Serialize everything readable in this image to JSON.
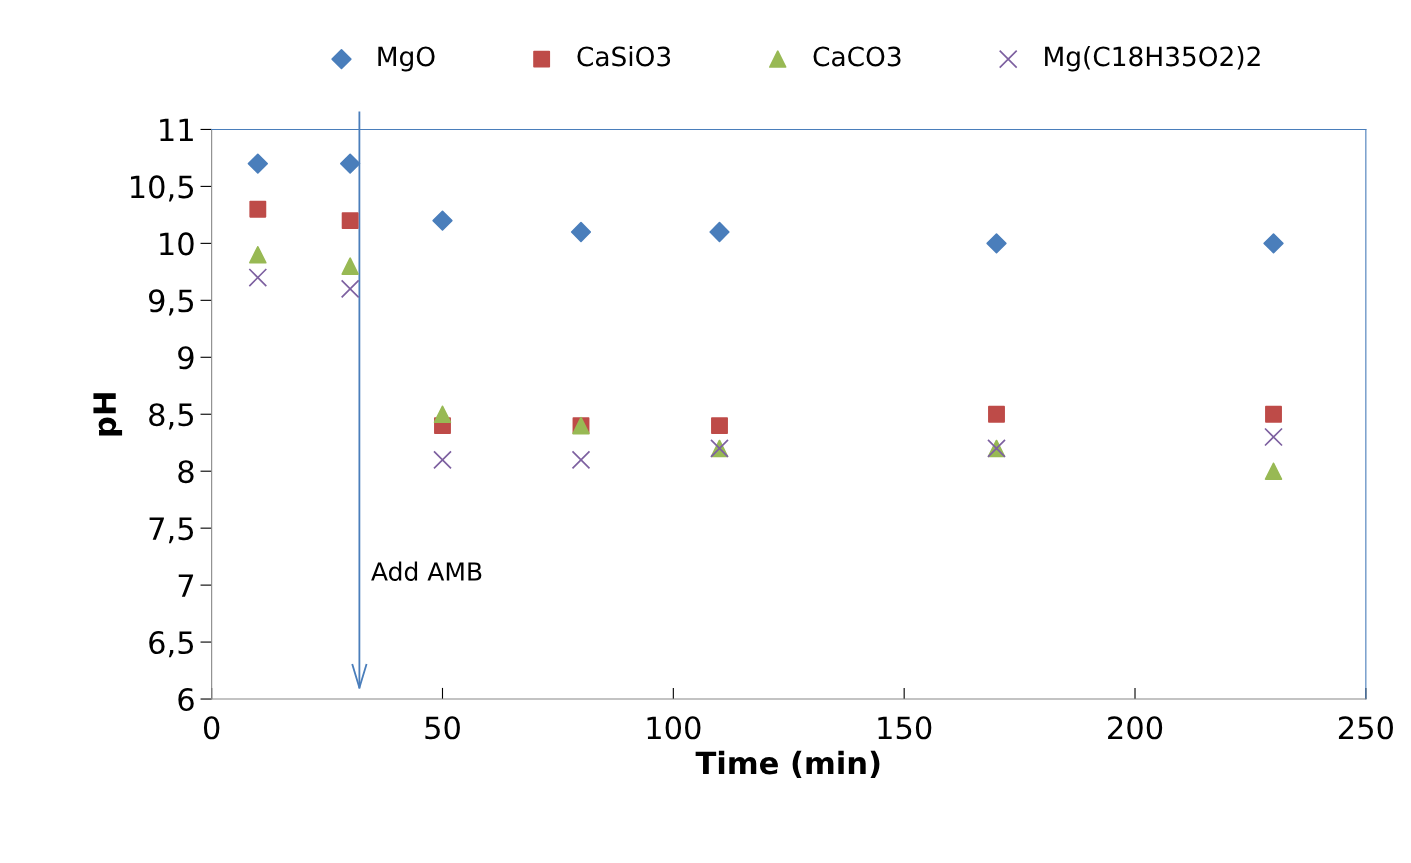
{
  "chart_data": {
    "type": "scatter",
    "xlabel": "Time (min)",
    "ylabel": "pH",
    "x": [
      10,
      30,
      50,
      80,
      110,
      170,
      230
    ],
    "series": [
      {
        "name": "MgO",
        "color": "#4a7ebb",
        "marker": "diamond",
        "values": [
          10.7,
          10.7,
          10.2,
          10.1,
          10.1,
          10.0,
          10.0
        ]
      },
      {
        "name": "CaSiO3",
        "color": "#be4b48",
        "marker": "square",
        "values": [
          10.3,
          10.2,
          8.4,
          8.4,
          8.4,
          8.5,
          8.5
        ]
      },
      {
        "name": "CaCO3",
        "color": "#98b954",
        "marker": "triangle",
        "values": [
          9.9,
          9.8,
          8.5,
          8.4,
          8.2,
          8.2,
          8.0
        ]
      },
      {
        "name": "Mg(C18H35O2)2",
        "color": "#7d60a0",
        "marker": "cross",
        "values": [
          9.7,
          9.6,
          8.1,
          8.1,
          8.2,
          8.2,
          8.3
        ]
      }
    ],
    "xlim": [
      0,
      250
    ],
    "xticks": [
      0,
      50,
      100,
      150,
      200,
      250
    ],
    "ylim": [
      6,
      11
    ],
    "yticks": [
      6,
      {
        "value": 6.5,
        "label": "6,5"
      },
      7,
      {
        "value": 7.5,
        "label": "7,5"
      },
      8,
      {
        "value": 8.5,
        "label": "8,5"
      },
      9,
      {
        "value": 9.5,
        "label": "9,5"
      },
      10,
      {
        "value": 10.5,
        "label": "10,5"
      },
      11
    ],
    "ref_lines": [
      {
        "axis": "x",
        "value": 32,
        "label": "Add AMB",
        "color": "#4a7ebb"
      }
    ],
    "grid": false,
    "legend": "top"
  }
}
